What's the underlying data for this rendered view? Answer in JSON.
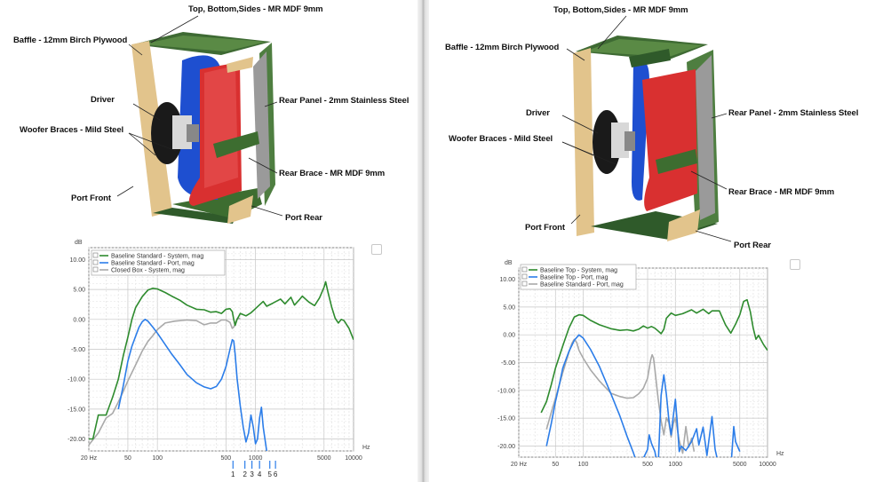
{
  "left": {
    "labels": {
      "top": "Top, Bottom,Sides - MR MDF 9mm",
      "baffle": "Baffle - 12mm Birch Plywood",
      "driver": "Driver",
      "braces": "Woofer Braces - Mild Steel",
      "port_front": "Port Front",
      "rear_panel": "Rear Panel - 2mm Stainless Steel",
      "rear_brace": "Rear Brace - MR MDF 9mm",
      "port_rear": "Port Rear"
    },
    "chart_data": {
      "type": "line",
      "ylabel": "dB",
      "xlabel": "Hz",
      "xscale": "log",
      "xlim": [
        20,
        10000
      ],
      "ylim": [
        -22,
        12
      ],
      "yticks": [
        "10.00",
        "5.00",
        "0.00",
        "-5.00",
        "-10.00",
        "-15.00",
        "-20.00"
      ],
      "xticks": [
        "20 Hz",
        "50",
        "100",
        "500",
        "1000",
        "5000",
        "10000"
      ],
      "markers": [
        "1",
        "2",
        "3",
        "4",
        "5",
        "6"
      ],
      "series": [
        {
          "name": "Baseline Standard - System, mag",
          "color": "#2e8b2e",
          "points": [
            [
              20,
              -20
            ],
            [
              22,
              -20
            ],
            [
              25,
              -16
            ],
            [
              30,
              -16
            ],
            [
              35,
              -13
            ],
            [
              40,
              -10
            ],
            [
              45,
              -6
            ],
            [
              50,
              -3
            ],
            [
              55,
              0
            ],
            [
              60,
              2
            ],
            [
              70,
              3.8
            ],
            [
              80,
              4.9
            ],
            [
              90,
              5.2
            ],
            [
              100,
              5.1
            ],
            [
              120,
              4.5
            ],
            [
              140,
              3.9
            ],
            [
              170,
              3.2
            ],
            [
              200,
              2.4
            ],
            [
              250,
              1.7
            ],
            [
              300,
              1.6
            ],
            [
              350,
              1.2
            ],
            [
              400,
              1.3
            ],
            [
              450,
              1.0
            ],
            [
              500,
              1.7
            ],
            [
              550,
              1.8
            ],
            [
              580,
              1.3
            ],
            [
              600,
              0
            ],
            [
              620,
              -1.0
            ],
            [
              650,
              0
            ],
            [
              700,
              1.0
            ],
            [
              800,
              0.6
            ],
            [
              900,
              1.1
            ],
            [
              1000,
              1.8
            ],
            [
              1200,
              3.0
            ],
            [
              1300,
              2.2
            ],
            [
              1500,
              2.7
            ],
            [
              1800,
              3.4
            ],
            [
              2000,
              2.6
            ],
            [
              2300,
              3.7
            ],
            [
              2500,
              2.4
            ],
            [
              2800,
              3.3
            ],
            [
              3000,
              3.9
            ],
            [
              3500,
              2.9
            ],
            [
              4000,
              2.3
            ],
            [
              4500,
              3.6
            ],
            [
              5000,
              5.4
            ],
            [
              5200,
              6.3
            ],
            [
              5500,
              4.5
            ],
            [
              6000,
              2.0
            ],
            [
              6500,
              0.2
            ],
            [
              7000,
              -0.6
            ],
            [
              7500,
              0
            ],
            [
              8000,
              -0.2
            ],
            [
              9000,
              -1.5
            ],
            [
              10000,
              -3.4
            ]
          ]
        },
        {
          "name": "Baseline Standard - Port, mag",
          "color": "#2b7de9",
          "points": [
            [
              40,
              -15
            ],
            [
              45,
              -11
            ],
            [
              50,
              -7
            ],
            [
              55,
              -4.5
            ],
            [
              60,
              -2.8
            ],
            [
              65,
              -1.3
            ],
            [
              70,
              -0.4
            ],
            [
              75,
              0
            ],
            [
              80,
              -0.3
            ],
            [
              90,
              -1.3
            ],
            [
              100,
              -2.3
            ],
            [
              120,
              -4.2
            ],
            [
              140,
              -5.8
            ],
            [
              170,
              -7.6
            ],
            [
              200,
              -9.2
            ],
            [
              250,
              -10.6
            ],
            [
              300,
              -11.3
            ],
            [
              350,
              -11.6
            ],
            [
              400,
              -11.2
            ],
            [
              450,
              -10.0
            ],
            [
              500,
              -7.9
            ],
            [
              550,
              -5.0
            ],
            [
              580,
              -3.4
            ],
            [
              600,
              -3.6
            ],
            [
              620,
              -5.8
            ],
            [
              650,
              -9.9
            ],
            [
              700,
              -14.5
            ],
            [
              750,
              -18.0
            ],
            [
              800,
              -20.5
            ],
            [
              850,
              -19.0
            ],
            [
              900,
              -16.0
            ],
            [
              950,
              -18.0
            ],
            [
              1000,
              -20.8
            ],
            [
              1050,
              -20.0
            ],
            [
              1100,
              -16.5
            ],
            [
              1150,
              -14.7
            ],
            [
              1200,
              -18.0
            ],
            [
              1300,
              -22.0
            ]
          ]
        },
        {
          "name": "Closed Box - System, mag",
          "color": "#a9a9a9",
          "points": [
            [
              20,
              -21
            ],
            [
              25,
              -19
            ],
            [
              30,
              -16.5
            ],
            [
              35,
              -15.7
            ],
            [
              40,
              -13.8
            ],
            [
              45,
              -12
            ],
            [
              50,
              -10.3
            ],
            [
              60,
              -7.6
            ],
            [
              70,
              -5.3
            ],
            [
              80,
              -3.7
            ],
            [
              90,
              -2.7
            ],
            [
              100,
              -1.7
            ],
            [
              120,
              -0.6
            ],
            [
              150,
              -0.3
            ],
            [
              200,
              -0.1
            ],
            [
              250,
              -0.2
            ],
            [
              300,
              -0.9
            ],
            [
              350,
              -0.6
            ],
            [
              400,
              -0.6
            ],
            [
              450,
              -0.1
            ],
            [
              500,
              -0.1
            ],
            [
              550,
              -0.5
            ],
            [
              580,
              -1.5
            ],
            [
              600,
              -1.3
            ],
            [
              650,
              0.1
            ],
            [
              700,
              0.2
            ]
          ]
        }
      ]
    }
  },
  "right": {
    "labels": {
      "top": "Top, Bottom,Sides - MR MDF 9mm",
      "baffle": "Baffle - 12mm Birch Plywood",
      "driver": "Driver",
      "braces": "Woofer Braces - Mild Steel",
      "port_front": "Port Front",
      "rear_panel": "Rear Panel - 2mm Stainless Steel",
      "rear_brace": "Rear Brace - MR MDF 9mm",
      "port_rear": "Port Rear"
    },
    "chart_data": {
      "type": "line",
      "ylabel": "dB",
      "xlabel": "Hz",
      "xscale": "log",
      "xlim": [
        20,
        10000
      ],
      "ylim": [
        -22,
        12
      ],
      "yticks": [
        "10.00",
        "5.00",
        "0.00",
        "-5.00",
        "-10.00",
        "-15.00",
        "-20.00"
      ],
      "xticks": [
        "20 Hz",
        "50",
        "100",
        "500",
        "1000",
        "5000",
        "10000"
      ],
      "series": [
        {
          "name": "Baseline Top - System, mag",
          "color": "#2e8b2e",
          "points": [
            [
              35,
              -14
            ],
            [
              40,
              -12
            ],
            [
              45,
              -9
            ],
            [
              50,
              -6
            ],
            [
              60,
              -2
            ],
            [
              70,
              1.2
            ],
            [
              80,
              3.2
            ],
            [
              90,
              3.6
            ],
            [
              100,
              3.5
            ],
            [
              120,
              2.6
            ],
            [
              150,
              1.8
            ],
            [
              200,
              1.1
            ],
            [
              250,
              0.8
            ],
            [
              300,
              0.9
            ],
            [
              350,
              0.7
            ],
            [
              400,
              1.0
            ],
            [
              450,
              1.6
            ],
            [
              500,
              1.2
            ],
            [
              550,
              1.5
            ],
            [
              600,
              1.2
            ],
            [
              650,
              0.7
            ],
            [
              700,
              0.2
            ],
            [
              750,
              1.0
            ],
            [
              800,
              3.0
            ],
            [
              900,
              3.9
            ],
            [
              1000,
              3.5
            ],
            [
              1200,
              3.8
            ],
            [
              1500,
              4.5
            ],
            [
              1700,
              3.9
            ],
            [
              2000,
              4.6
            ],
            [
              2300,
              3.8
            ],
            [
              2500,
              4.3
            ],
            [
              3000,
              4.3
            ],
            [
              3500,
              1.8
            ],
            [
              4000,
              0.3
            ],
            [
              4500,
              1.9
            ],
            [
              5000,
              3.6
            ],
            [
              5500,
              6.0
            ],
            [
              6000,
              6.3
            ],
            [
              6500,
              4.2
            ],
            [
              7000,
              1.2
            ],
            [
              7500,
              -0.8
            ],
            [
              8000,
              -0.1
            ],
            [
              9000,
              -1.7
            ],
            [
              10000,
              -2.8
            ]
          ]
        },
        {
          "name": "Baseline Top - Port, mag",
          "color": "#2b7de9",
          "points": [
            [
              40,
              -20
            ],
            [
              45,
              -16
            ],
            [
              50,
              -12
            ],
            [
              55,
              -9
            ],
            [
              60,
              -6
            ],
            [
              70,
              -3
            ],
            [
              80,
              -1
            ],
            [
              90,
              0
            ],
            [
              100,
              -0.6
            ],
            [
              120,
              -2.6
            ],
            [
              150,
              -5.7
            ],
            [
              200,
              -10.6
            ],
            [
              250,
              -14.6
            ],
            [
              300,
              -18.3
            ],
            [
              350,
              -21.2
            ],
            [
              400,
              -24
            ],
            [
              500,
              -20.6
            ],
            [
              520,
              -18.0
            ],
            [
              550,
              -19.5
            ],
            [
              600,
              -21
            ],
            [
              650,
              -24
            ],
            [
              700,
              -10.9
            ],
            [
              750,
              -7.2
            ],
            [
              800,
              -10.8
            ],
            [
              850,
              -15.2
            ],
            [
              900,
              -18.0
            ],
            [
              950,
              -14.7
            ],
            [
              1000,
              -11.6
            ],
            [
              1050,
              -16.0
            ],
            [
              1100,
              -21.0
            ],
            [
              1150,
              -20.0
            ],
            [
              1300,
              -20.8
            ],
            [
              1500,
              -19.2
            ],
            [
              1700,
              -16.9
            ],
            [
              1800,
              -19.8
            ],
            [
              2000,
              -16.6
            ],
            [
              2200,
              -21.7
            ],
            [
              2500,
              -14.7
            ],
            [
              2700,
              -20.6
            ],
            [
              3000,
              -24
            ],
            [
              4000,
              -24
            ],
            [
              4300,
              -16.5
            ],
            [
              4500,
              -19.2
            ],
            [
              5000,
              -21
            ]
          ]
        },
        {
          "name": "Baseline Standard - Port, mag",
          "color": "#a9a9a9",
          "points": [
            [
              40,
              -17
            ],
            [
              45,
              -14
            ],
            [
              50,
              -11.4
            ],
            [
              60,
              -6.8
            ],
            [
              70,
              -3.2
            ],
            [
              75,
              -1.6
            ],
            [
              80,
              -0.8
            ],
            [
              85,
              -1.4
            ],
            [
              90,
              -2.8
            ],
            [
              100,
              -4.2
            ],
            [
              120,
              -6.3
            ],
            [
              150,
              -8.3
            ],
            [
              200,
              -10.5
            ],
            [
              250,
              -11.1
            ],
            [
              300,
              -11.4
            ],
            [
              350,
              -11.3
            ],
            [
              400,
              -10.6
            ],
            [
              450,
              -9.6
            ],
            [
              500,
              -7.8
            ],
            [
              540,
              -4.5
            ],
            [
              560,
              -3.6
            ],
            [
              580,
              -4.2
            ],
            [
              600,
              -6.2
            ],
            [
              650,
              -11.4
            ],
            [
              700,
              -15.4
            ],
            [
              750,
              -18.0
            ],
            [
              800,
              -14.9
            ],
            [
              850,
              -15.8
            ],
            [
              900,
              -18.4
            ],
            [
              950,
              -16.0
            ],
            [
              1000,
              -14.9
            ],
            [
              1100,
              -19.0
            ],
            [
              1200,
              -21.3
            ],
            [
              1300,
              -16.5
            ],
            [
              1400,
              -20.2
            ],
            [
              1500,
              -18.6
            ],
            [
              1600,
              -21.0
            ]
          ]
        }
      ]
    }
  }
}
